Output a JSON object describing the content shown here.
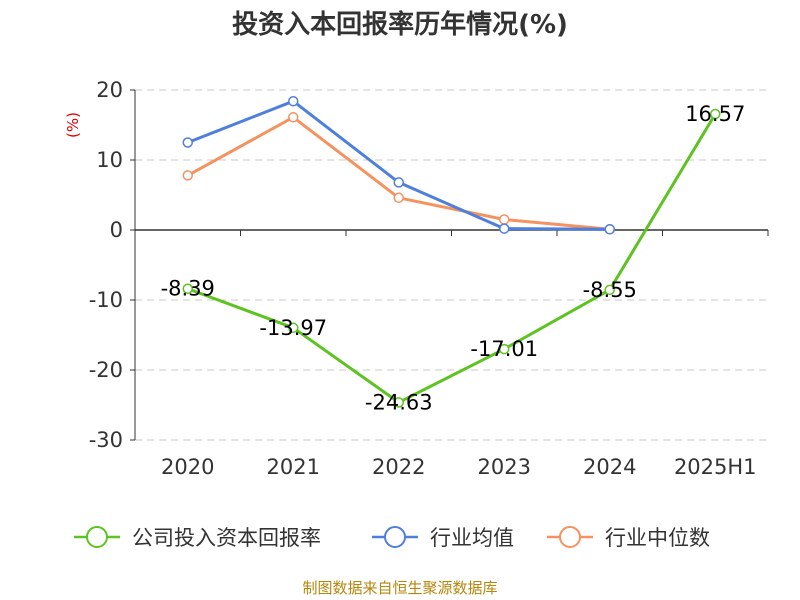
{
  "chart_data": {
    "type": "line",
    "title": "投资入本回报率历年情况(%)",
    "ylabel": "(%)",
    "categories": [
      "2020",
      "2021",
      "2022",
      "2023",
      "2024",
      "2025H1"
    ],
    "yticks": [
      "20",
      "10",
      "0",
      "-10",
      "-20",
      "-30"
    ],
    "ylim": [
      -30,
      20
    ],
    "grid": true,
    "legend_position": "bottom",
    "series": [
      {
        "name": "公司投入资本回报率",
        "color": "#5cc321",
        "values": [
          -8.39,
          -13.97,
          -24.63,
          -17.01,
          -8.55,
          16.57
        ],
        "labels": [
          "-8.39",
          "-13.97",
          "-24.63",
          "-17.01",
          "-8.55",
          "16.57"
        ]
      },
      {
        "name": "行业均值",
        "color": "#4f7fdc",
        "values": [
          12.5,
          18.4,
          6.8,
          0.2,
          0.1,
          null
        ]
      },
      {
        "name": "行业中位数",
        "color": "#f59260",
        "values": [
          7.8,
          16.1,
          4.6,
          1.5,
          0.1,
          null
        ]
      }
    ],
    "source": "制图数据来自恒生聚源数据库"
  }
}
